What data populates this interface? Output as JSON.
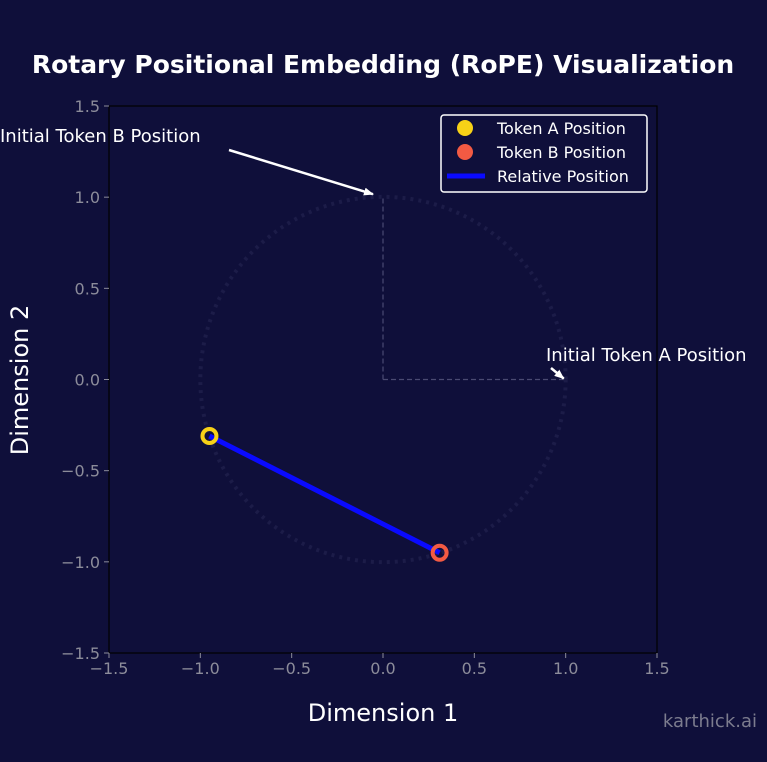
{
  "chart_data": {
    "type": "scatter",
    "title": "Rotary Positional Embedding (RoPE) Visualization",
    "xlabel": "Dimension 1",
    "ylabel": "Dimension 2",
    "xlim": [
      -1.5,
      1.5
    ],
    "ylim": [
      -1.5,
      1.5
    ],
    "xticks": [
      -1.5,
      -1.0,
      -0.5,
      0.0,
      0.5,
      1.0,
      1.5
    ],
    "yticks": [
      -1.5,
      -1.0,
      -0.5,
      0.0,
      0.5,
      1.0,
      1.5
    ],
    "xtick_labels": [
      "−1.5",
      "−1.0",
      "−0.5",
      "0.0",
      "0.5",
      "1.0",
      "1.5"
    ],
    "ytick_labels": [
      "−1.5",
      "−1.0",
      "−0.5",
      "0.0",
      "0.5",
      "1.0",
      "1.5"
    ],
    "grid": false,
    "legend_position": "top-right",
    "series": [
      {
        "name": "Token A Position",
        "x": [
          -0.95
        ],
        "y": [
          -0.31
        ],
        "color": "#f7d117"
      },
      {
        "name": "Token B Position",
        "x": [
          0.31
        ],
        "y": [
          -0.95
        ],
        "color": "#f25a43"
      },
      {
        "name": "Relative Position",
        "type": "line",
        "x": [
          -0.95,
          0.31
        ],
        "y": [
          -0.31,
          -0.95
        ],
        "color": "#0a0aff"
      }
    ],
    "guide_lines": {
      "color": "#4a4a72",
      "style": "dashed",
      "from_origin_to": [
        [
          1.0,
          0.0
        ],
        [
          0.0,
          1.0
        ]
      ]
    },
    "faint_arc": {
      "color": "#1c1c48",
      "center": [
        0,
        0
      ],
      "radius": 1.0
    },
    "annotations": [
      {
        "text": "Initial Token B Position",
        "target": [
          0.0,
          1.0
        ]
      },
      {
        "text": "Initial Token A Position",
        "target": [
          1.0,
          0.0
        ]
      }
    ],
    "watermark": "karthick.ai",
    "colors": {
      "background": "#0f0f3a",
      "tick": "#8c8c9a",
      "text": "#ffffff",
      "legend_bg": "#0f0f3a",
      "legend_border": "#ffffff"
    }
  }
}
